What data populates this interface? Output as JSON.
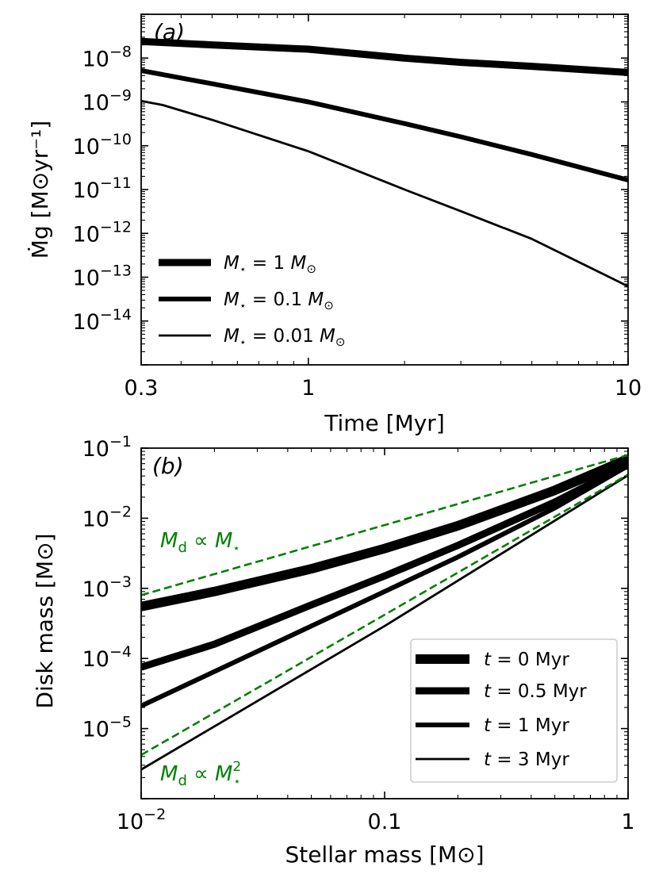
{
  "chart_data": [
    {
      "type": "line",
      "panel_label": "(a)",
      "xlabel": "Time [Myr]",
      "ylabel": "Ṁg [M⊙yr⁻¹]",
      "xscale": "log",
      "yscale": "log",
      "xlim": [
        0.3,
        10
      ],
      "ylim": [
        1e-15,
        1e-07
      ],
      "xticks": [
        {
          "value": 0.3,
          "label": "0.3"
        },
        {
          "value": 1,
          "label": "1"
        },
        {
          "value": 10,
          "label": "10"
        }
      ],
      "yticks": [
        {
          "value": 1e-08,
          "base": "10",
          "exp": "−8"
        },
        {
          "value": 1e-09,
          "base": "10",
          "exp": "−9"
        },
        {
          "value": 1e-10,
          "base": "10",
          "exp": "−10"
        },
        {
          "value": 1e-11,
          "base": "10",
          "exp": "−11"
        },
        {
          "value": 1e-12,
          "base": "10",
          "exp": "−12"
        },
        {
          "value": 1e-13,
          "base": "10",
          "exp": "−13"
        },
        {
          "value": 1e-14,
          "base": "10",
          "exp": "−14"
        }
      ],
      "legend_position": "lower-left",
      "series": [
        {
          "name": "M⋆ = 1 M⊙",
          "legend": {
            "sym": "M",
            "sub": "⋆",
            "rest": " = 1 ",
            "unit": "M",
            "unit_sub": "⊙"
          },
          "weight": "thick",
          "color": "#000000",
          "x": [
            0.3,
            0.5,
            1,
            2,
            3,
            5,
            10
          ],
          "y": [
            2.4e-08,
            2e-08,
            1.6e-08,
            1e-08,
            8e-09,
            6.5e-09,
            4.7e-09
          ]
        },
        {
          "name": "M⋆ = 0.1 M⊙",
          "legend": {
            "sym": "M",
            "sub": "⋆",
            "rest": " = 0.1 ",
            "unit": "M",
            "unit_sub": "⊙"
          },
          "weight": "medium",
          "color": "#000000",
          "x": [
            0.3,
            0.5,
            1,
            2,
            3,
            5,
            10
          ],
          "y": [
            5.2e-09,
            2.6e-09,
            1e-09,
            3.2e-10,
            1.6e-10,
            6.3e-11,
            1.65e-11
          ]
        },
        {
          "name": "M⋆ = 0.01 M⊙",
          "legend": {
            "sym": "M",
            "sub": "⋆",
            "rest": " = 0.01 ",
            "unit": "M",
            "unit_sub": "⊙"
          },
          "weight": "thin",
          "color": "#000000",
          "x": [
            0.3,
            0.35,
            0.5,
            1,
            2,
            3,
            5,
            10
          ],
          "y": [
            1.05e-09,
            8.5e-10,
            3.9e-10,
            7.5e-11,
            1e-11,
            3.2e-12,
            7.5e-13,
            6.2e-14
          ]
        }
      ]
    },
    {
      "type": "line",
      "panel_label": "(b)",
      "xlabel": "Stellar mass [M⊙]",
      "ylabel": "Disk mass [M⊙]",
      "xscale": "log",
      "yscale": "log",
      "xlim": [
        0.01,
        1
      ],
      "ylim": [
        1e-06,
        0.1
      ],
      "xticks": [
        {
          "value": 0.01,
          "base": "10",
          "exp": "−2"
        },
        {
          "value": 0.1,
          "label": "0.1"
        },
        {
          "value": 1,
          "label": "1"
        }
      ],
      "yticks": [
        {
          "value": 0.1,
          "base": "10",
          "exp": "−1"
        },
        {
          "value": 0.01,
          "base": "10",
          "exp": "−2"
        },
        {
          "value": 0.001,
          "base": "10",
          "exp": "−3"
        },
        {
          "value": 0.0001,
          "base": "10",
          "exp": "−4"
        },
        {
          "value": 1e-05,
          "base": "10",
          "exp": "−5"
        }
      ],
      "legend_position": "lower-right",
      "series": [
        {
          "name": "t = 0 Myr",
          "legend": {
            "sym": "t",
            "rest": " = 0 Myr"
          },
          "weight": "thickest",
          "color": "#000000",
          "x": [
            0.01,
            0.02,
            0.05,
            0.1,
            0.2,
            0.5,
            1
          ],
          "y": [
            0.00055,
            0.0009,
            0.0019,
            0.0037,
            0.0078,
            0.025,
            0.07
          ]
        },
        {
          "name": "t = 0.5 Myr",
          "legend": {
            "sym": "t",
            "rest": " = 0.5 Myr"
          },
          "weight": "thick",
          "color": "#000000",
          "x": [
            0.01,
            0.02,
            0.05,
            0.1,
            0.2,
            0.5,
            1
          ],
          "y": [
            7.5e-05,
            0.00016,
            0.00058,
            0.0015,
            0.0041,
            0.017,
            0.058
          ]
        },
        {
          "name": "t = 1 Myr",
          "legend": {
            "sym": "t",
            "rest": " = 1 Myr"
          },
          "weight": "medium",
          "color": "#000000",
          "x": [
            0.01,
            0.02,
            0.05,
            0.1,
            0.2,
            0.5,
            1
          ],
          "y": [
            2.1e-05,
            6.5e-05,
            0.00029,
            0.0009,
            0.0028,
            0.014,
            0.056
          ]
        },
        {
          "name": "t = 3 Myr",
          "legend": {
            "sym": "t",
            "rest": " = 3 Myr"
          },
          "weight": "thin",
          "color": "#000000",
          "x": [
            0.01,
            0.1,
            1
          ],
          "y": [
            2.6e-06,
            0.00029,
            0.041
          ]
        },
        {
          "name": "Md ∝ M⋆",
          "weight": "dashed",
          "color": "#008000",
          "x": [
            0.01,
            1
          ],
          "y": [
            0.0008,
            0.08
          ]
        },
        {
          "name": "Md ∝ M⋆²",
          "weight": "dashed",
          "color": "#008000",
          "x": [
            0.01,
            1
          ],
          "y": [
            4.2e-06,
            0.042
          ]
        }
      ],
      "annotations": [
        {
          "name": "linear-scaling",
          "text_main": "M",
          "text_sub": "d",
          "text_rel": " ∝ ",
          "text_var": "M",
          "text_var_sub": "⋆",
          "text_sup": ""
        },
        {
          "name": "quadratic-scaling",
          "text_main": "M",
          "text_sub": "d",
          "text_rel": " ∝ ",
          "text_var": "M",
          "text_var_sub": "⋆",
          "text_sup": "2"
        }
      ]
    }
  ],
  "colors": {
    "axes": "#000000",
    "scaling_lines": "#008000",
    "legend_frame": "#cccccc"
  }
}
